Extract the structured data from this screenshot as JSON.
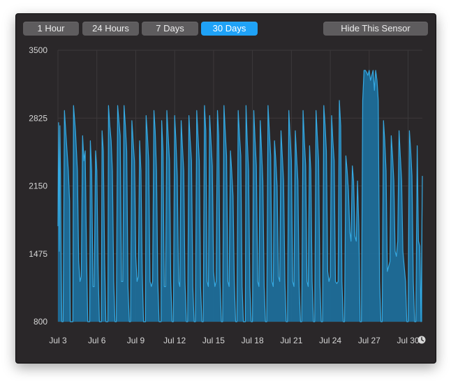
{
  "toolbar": {
    "buttons": [
      {
        "label": "1 Hour",
        "active": false
      },
      {
        "label": "24 Hours",
        "active": false
      },
      {
        "label": "7 Days",
        "active": false
      },
      {
        "label": "30 Days",
        "active": true
      }
    ],
    "hide_label": "Hide This Sensor"
  },
  "clock_icon": "clock-icon",
  "colors": {
    "panel_bg": "#2a2729",
    "accent": "#1fa2f7",
    "line": "#36a9e1",
    "fill": "#1d6f9c",
    "grid": "#3c393b"
  },
  "chart_data": {
    "type": "area",
    "title": "",
    "xlabel": "",
    "ylabel": "",
    "ylim": [
      800,
      3500
    ],
    "yticks": [
      "3500",
      "2825",
      "2150",
      "1475",
      "800"
    ],
    "xticks": [
      "Jul 3",
      "Jul 6",
      "Jul 9",
      "Jul 12",
      "Jul 15",
      "Jul 18",
      "Jul 21",
      "Jul 24",
      "Jul 27",
      "Jul 30"
    ],
    "x_start": "Jul 3",
    "x_end": "Jul 31",
    "grid": true,
    "series": [
      {
        "values": [
          [
            0.0,
            1750
          ],
          [
            0.05,
            2780
          ],
          [
            0.1,
            1500
          ],
          [
            0.15,
            2750
          ],
          [
            0.2,
            2250
          ],
          [
            0.25,
            1450
          ],
          [
            0.3,
            800
          ],
          [
            0.4,
            800
          ],
          [
            0.5,
            2900
          ],
          [
            0.6,
            2700
          ],
          [
            0.7,
            2500
          ],
          [
            0.8,
            2300
          ],
          [
            0.85,
            2150
          ],
          [
            0.9,
            2000
          ],
          [
            0.95,
            800
          ],
          [
            1.15,
            800
          ],
          [
            1.2,
            2950
          ],
          [
            1.35,
            2700
          ],
          [
            1.5,
            2300
          ],
          [
            1.6,
            1400
          ],
          [
            1.7,
            1200
          ],
          [
            1.8,
            1250
          ],
          [
            1.9,
            2650
          ],
          [
            2.0,
            2400
          ],
          [
            2.1,
            2500
          ],
          [
            2.2,
            1500
          ],
          [
            2.3,
            800
          ],
          [
            2.45,
            800
          ],
          [
            2.5,
            2600
          ],
          [
            2.6,
            2300
          ],
          [
            2.7,
            1150
          ],
          [
            2.8,
            1150
          ],
          [
            2.9,
            2500
          ],
          [
            3.0,
            2300
          ],
          [
            3.1,
            1300
          ],
          [
            3.2,
            800
          ],
          [
            3.35,
            800
          ],
          [
            3.4,
            2700
          ],
          [
            3.5,
            2500
          ],
          [
            3.6,
            1400
          ],
          [
            3.7,
            800
          ],
          [
            3.85,
            800
          ],
          [
            3.9,
            2950
          ],
          [
            4.0,
            2750
          ],
          [
            4.1,
            2600
          ],
          [
            4.2,
            2300
          ],
          [
            4.3,
            1200
          ],
          [
            4.4,
            800
          ],
          [
            4.5,
            800
          ],
          [
            4.6,
            2950
          ],
          [
            4.7,
            2800
          ],
          [
            4.8,
            2650
          ],
          [
            4.9,
            1200
          ],
          [
            5.0,
            1200
          ],
          [
            5.1,
            2950
          ],
          [
            5.2,
            2750
          ],
          [
            5.3,
            2500
          ],
          [
            5.4,
            1150
          ],
          [
            5.5,
            800
          ],
          [
            5.6,
            800
          ],
          [
            5.7,
            2800
          ],
          [
            5.8,
            2600
          ],
          [
            5.9,
            2400
          ],
          [
            6.0,
            1450
          ],
          [
            6.1,
            1200
          ],
          [
            6.2,
            1250
          ],
          [
            6.3,
            2600
          ],
          [
            6.4,
            2300
          ],
          [
            6.5,
            1300
          ],
          [
            6.6,
            800
          ],
          [
            6.75,
            800
          ],
          [
            6.8,
            2850
          ],
          [
            6.9,
            2650
          ],
          [
            7.0,
            2400
          ],
          [
            7.1,
            1200
          ],
          [
            7.2,
            1150
          ],
          [
            7.3,
            1200
          ],
          [
            7.4,
            2900
          ],
          [
            7.5,
            2700
          ],
          [
            7.6,
            2300
          ],
          [
            7.7,
            1200
          ],
          [
            7.8,
            800
          ],
          [
            7.95,
            800
          ],
          [
            8.0,
            2800
          ],
          [
            8.1,
            2500
          ],
          [
            8.2,
            1150
          ],
          [
            8.3,
            1150
          ],
          [
            8.4,
            2900
          ],
          [
            8.5,
            2650
          ],
          [
            8.6,
            2400
          ],
          [
            8.7,
            1200
          ],
          [
            8.8,
            800
          ],
          [
            8.9,
            800
          ],
          [
            9.0,
            2850
          ],
          [
            9.1,
            2600
          ],
          [
            9.2,
            2250
          ],
          [
            9.3,
            1200
          ],
          [
            9.4,
            1150
          ],
          [
            9.5,
            2800
          ],
          [
            9.6,
            2550
          ],
          [
            9.7,
            2300
          ],
          [
            9.8,
            1200
          ],
          [
            9.9,
            800
          ],
          [
            10.0,
            800
          ],
          [
            10.1,
            2850
          ],
          [
            10.2,
            2600
          ],
          [
            10.3,
            2400
          ],
          [
            10.4,
            1150
          ],
          [
            10.5,
            800
          ],
          [
            10.6,
            800
          ],
          [
            10.7,
            2900
          ],
          [
            10.8,
            2650
          ],
          [
            10.9,
            2400
          ],
          [
            11.0,
            1150
          ],
          [
            11.1,
            800
          ],
          [
            11.2,
            800
          ],
          [
            11.3,
            2950
          ],
          [
            11.4,
            2700
          ],
          [
            11.5,
            1200
          ],
          [
            11.6,
            1150
          ],
          [
            11.7,
            2850
          ],
          [
            11.8,
            2600
          ],
          [
            11.9,
            2350
          ],
          [
            12.0,
            1300
          ],
          [
            12.1,
            1150
          ],
          [
            12.2,
            1200
          ],
          [
            12.3,
            2900
          ],
          [
            12.4,
            2650
          ],
          [
            12.5,
            1200
          ],
          [
            12.6,
            800
          ],
          [
            12.7,
            800
          ],
          [
            12.8,
            2950
          ],
          [
            12.9,
            2700
          ],
          [
            13.0,
            2450
          ],
          [
            13.1,
            1200
          ],
          [
            13.2,
            1150
          ],
          [
            13.3,
            2500
          ],
          [
            13.4,
            2300
          ],
          [
            13.5,
            2050
          ],
          [
            13.6,
            1200
          ],
          [
            13.7,
            800
          ],
          [
            13.8,
            800
          ],
          [
            13.9,
            2900
          ],
          [
            14.0,
            2650
          ],
          [
            14.1,
            2450
          ],
          [
            14.2,
            1150
          ],
          [
            14.3,
            800
          ],
          [
            14.45,
            800
          ],
          [
            14.5,
            2950
          ],
          [
            14.6,
            2600
          ],
          [
            14.7,
            2300
          ],
          [
            14.8,
            1150
          ],
          [
            14.9,
            800
          ],
          [
            15.0,
            800
          ],
          [
            15.1,
            2900
          ],
          [
            15.2,
            2600
          ],
          [
            15.3,
            2350
          ],
          [
            15.4,
            1200
          ],
          [
            15.5,
            1150
          ],
          [
            15.6,
            2800
          ],
          [
            15.7,
            2500
          ],
          [
            15.8,
            2200
          ],
          [
            15.9,
            1150
          ],
          [
            16.0,
            800
          ],
          [
            16.1,
            800
          ],
          [
            16.2,
            2950
          ],
          [
            16.3,
            2700
          ],
          [
            16.4,
            2450
          ],
          [
            16.5,
            1200
          ],
          [
            16.6,
            1150
          ],
          [
            16.7,
            2600
          ],
          [
            16.8,
            2400
          ],
          [
            16.9,
            2150
          ],
          [
            17.0,
            1250
          ],
          [
            17.1,
            1200
          ],
          [
            17.2,
            2700
          ],
          [
            17.3,
            2450
          ],
          [
            17.4,
            2200
          ],
          [
            17.5,
            1200
          ],
          [
            17.6,
            800
          ],
          [
            17.7,
            800
          ],
          [
            17.8,
            2900
          ],
          [
            17.9,
            2650
          ],
          [
            18.0,
            2400
          ],
          [
            18.1,
            1200
          ],
          [
            18.2,
            1150
          ],
          [
            18.3,
            2700
          ],
          [
            18.4,
            2450
          ],
          [
            18.5,
            2200
          ],
          [
            18.6,
            1150
          ],
          [
            18.7,
            800
          ],
          [
            18.8,
            800
          ],
          [
            18.9,
            2900
          ],
          [
            19.0,
            2600
          ],
          [
            19.1,
            2350
          ],
          [
            19.2,
            1200
          ],
          [
            19.3,
            1150
          ],
          [
            19.4,
            2550
          ],
          [
            19.5,
            2300
          ],
          [
            19.6,
            1200
          ],
          [
            19.7,
            800
          ],
          [
            19.8,
            800
          ],
          [
            19.9,
            2900
          ],
          [
            20.0,
            2650
          ],
          [
            20.1,
            2400
          ],
          [
            20.2,
            1200
          ],
          [
            20.3,
            800
          ],
          [
            20.4,
            800
          ],
          [
            20.5,
            2950
          ],
          [
            20.6,
            2750
          ],
          [
            20.7,
            2500
          ],
          [
            20.8,
            1300
          ],
          [
            20.9,
            1200
          ],
          [
            21.0,
            1250
          ],
          [
            21.1,
            2850
          ],
          [
            21.2,
            2600
          ],
          [
            21.3,
            2400
          ],
          [
            21.4,
            1200
          ],
          [
            21.5,
            1180
          ],
          [
            21.6,
            1200
          ],
          [
            21.7,
            3000
          ],
          [
            21.8,
            2750
          ],
          [
            21.9,
            1200
          ],
          [
            22.0,
            800
          ],
          [
            22.1,
            800
          ],
          [
            22.2,
            2450
          ],
          [
            22.3,
            2300
          ],
          [
            22.4,
            2100
          ],
          [
            22.5,
            1700
          ],
          [
            22.6,
            1600
          ],
          [
            22.7,
            2350
          ],
          [
            22.8,
            2200
          ],
          [
            22.9,
            1650
          ],
          [
            23.0,
            1600
          ],
          [
            23.1,
            2200
          ],
          [
            23.2,
            1750
          ],
          [
            23.3,
            800
          ],
          [
            23.4,
            800
          ],
          [
            23.5,
            3000
          ],
          [
            23.6,
            3300
          ],
          [
            23.7,
            3300
          ],
          [
            23.8,
            3280
          ],
          [
            23.9,
            3250
          ],
          [
            24.0,
            3300
          ],
          [
            24.1,
            3200
          ],
          [
            24.2,
            3250
          ],
          [
            24.3,
            3300
          ],
          [
            24.4,
            3100
          ],
          [
            24.5,
            3300
          ],
          [
            24.6,
            3200
          ],
          [
            24.7,
            3000
          ],
          [
            24.8,
            1200
          ],
          [
            24.9,
            800
          ],
          [
            25.0,
            800
          ],
          [
            25.1,
            2800
          ],
          [
            25.2,
            2600
          ],
          [
            25.3,
            2300
          ],
          [
            25.4,
            1300
          ],
          [
            25.5,
            1350
          ],
          [
            25.6,
            1400
          ],
          [
            25.7,
            2650
          ],
          [
            25.8,
            2450
          ],
          [
            25.9,
            2200
          ],
          [
            26.0,
            1500
          ],
          [
            26.1,
            1450
          ],
          [
            26.2,
            1600
          ],
          [
            26.3,
            2700
          ],
          [
            26.4,
            2450
          ],
          [
            26.5,
            2200
          ],
          [
            26.6,
            1500
          ],
          [
            26.7,
            1350
          ],
          [
            26.8,
            1200
          ],
          [
            26.9,
            800
          ],
          [
            27.0,
            800
          ],
          [
            27.1,
            2700
          ],
          [
            27.2,
            2500
          ],
          [
            27.3,
            2250
          ],
          [
            27.4,
            1200
          ],
          [
            27.5,
            800
          ],
          [
            27.6,
            800
          ],
          [
            27.7,
            2550
          ],
          [
            27.8,
            1600
          ],
          [
            27.9,
            1550
          ],
          [
            28.0,
            800
          ],
          [
            28.1,
            2250
          ]
        ]
      }
    ]
  }
}
